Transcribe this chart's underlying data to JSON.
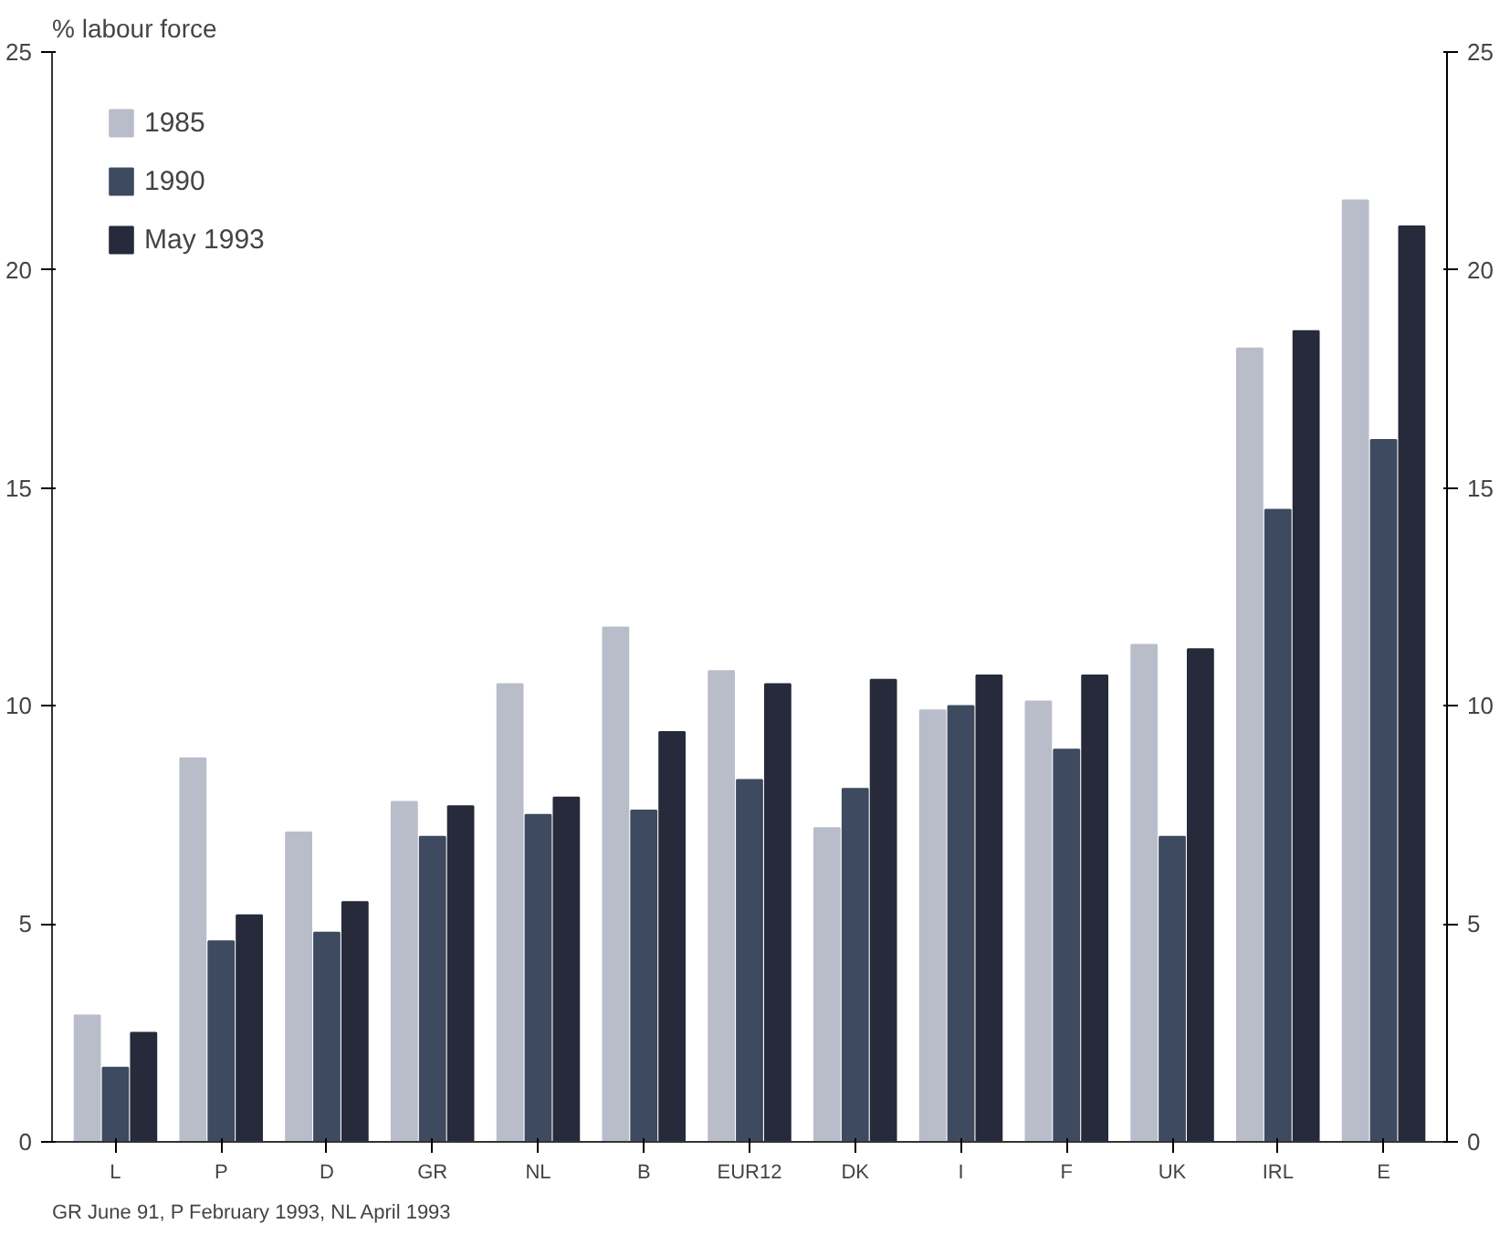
{
  "chart_data": {
    "type": "bar",
    "ylabel": "% labour force",
    "categories": [
      "L",
      "P",
      "D",
      "GR",
      "NL",
      "B",
      "EUR12",
      "DK",
      "I",
      "F",
      "UK",
      "IRL",
      "E"
    ],
    "series": [
      {
        "name": "1985",
        "color": "#b9bdca",
        "values": [
          2.9,
          8.8,
          7.1,
          7.8,
          10.5,
          11.8,
          10.8,
          7.2,
          9.9,
          10.1,
          11.4,
          18.2,
          21.6
        ]
      },
      {
        "name": "1990",
        "color": "#3e4a60",
        "values": [
          1.7,
          4.6,
          4.8,
          7.0,
          7.5,
          7.6,
          8.3,
          8.1,
          10.0,
          9.0,
          7.0,
          14.5,
          16.1
        ]
      },
      {
        "name": "May 1993",
        "color": "#262a3a",
        "values": [
          2.5,
          5.2,
          5.5,
          7.7,
          7.9,
          9.4,
          10.5,
          10.6,
          10.7,
          10.7,
          11.3,
          18.6,
          21.0
        ]
      }
    ],
    "ylim": [
      0,
      25
    ],
    "yticks": [
      0,
      5,
      10,
      15,
      20,
      25
    ],
    "y2lim": [
      0,
      25
    ],
    "y2ticks": [
      0,
      5,
      10,
      15,
      20,
      25
    ],
    "grid": false,
    "legend": "top left",
    "annotations": [
      "GR June 91, P February 1993, NL April 1993"
    ]
  }
}
